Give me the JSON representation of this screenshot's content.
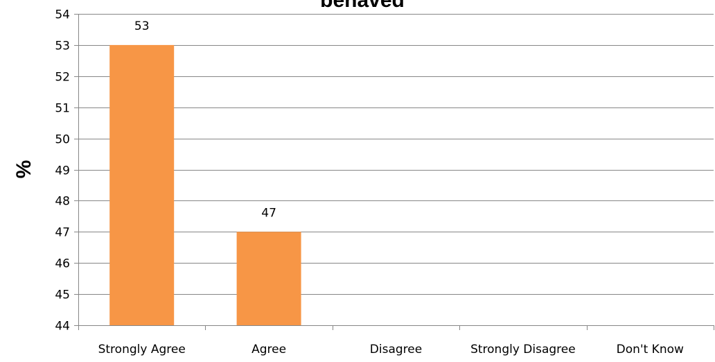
{
  "chart_data": {
    "type": "bar",
    "title": "behaved",
    "xlabel": "",
    "ylabel": "%",
    "categories": [
      "Strongly Agree",
      "Agree",
      "Disagree",
      "Strongly Disagree",
      "Don't Know"
    ],
    "values": [
      53,
      47,
      null,
      null,
      null
    ],
    "data_labels": [
      "53",
      "47",
      "",
      "",
      ""
    ],
    "ylim": [
      44,
      54
    ],
    "yticks": [
      44,
      45,
      46,
      47,
      48,
      49,
      50,
      51,
      52,
      53,
      54
    ],
    "grid": true,
    "legend": "none",
    "bar_color": "#F79646"
  }
}
